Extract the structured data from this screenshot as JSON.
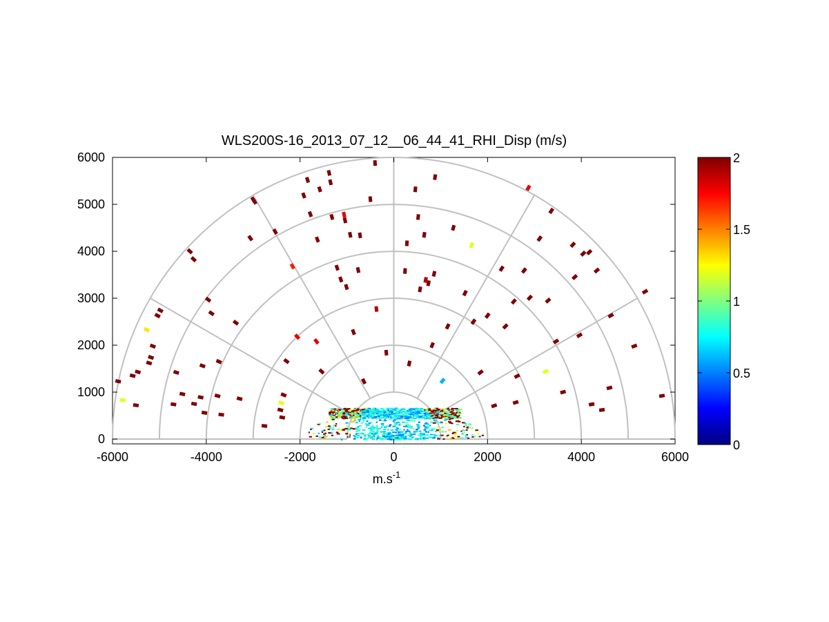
{
  "chart_data": {
    "type": "scatter",
    "subtype": "polar-rhi-sector",
    "title": "WLS200S-16_2013_07_12__06_44_41_RHI_Disp (m/s)",
    "xlabel": "m.s",
    "xlabel_sup": "-1",
    "ylabel": "",
    "xlim": [
      -6000,
      6000
    ],
    "ylim": [
      0,
      6000
    ],
    "xticks": [
      "-6000",
      "-4000",
      "-2000",
      "0",
      "2000",
      "4000",
      "6000"
    ],
    "yticks": [
      "0",
      "1000",
      "2000",
      "3000",
      "4000",
      "5000",
      "6000"
    ],
    "range_rings": [
      1000,
      2000,
      3000,
      4000,
      5000,
      6000
    ],
    "spokes_deg": [
      0,
      30,
      60,
      90,
      120,
      150,
      180
    ],
    "grid": true,
    "colorbar": {
      "colormap": "jet",
      "min": 0,
      "max": 2,
      "ticks": [
        "0",
        "0.5",
        "1",
        "1.5",
        "2"
      ]
    },
    "points": [
      [
        -5880,
        1230,
        2
      ],
      [
        -5780,
        830,
        1.2
      ],
      [
        -5500,
        720,
        2
      ],
      [
        -5570,
        1350,
        2
      ],
      [
        -5460,
        1430,
        2
      ],
      [
        -5270,
        2330,
        1.3
      ],
      [
        -5220,
        1620,
        2
      ],
      [
        -5180,
        1740,
        2
      ],
      [
        -5140,
        1980,
        2
      ],
      [
        -5040,
        2630,
        2
      ],
      [
        -4980,
        2740,
        2
      ],
      [
        -4700,
        740,
        2
      ],
      [
        -4640,
        1420,
        2
      ],
      [
        -4510,
        960,
        2
      ],
      [
        -4350,
        4000,
        2
      ],
      [
        -4270,
        3830,
        2
      ],
      [
        -4260,
        750,
        2
      ],
      [
        -4120,
        890,
        2
      ],
      [
        -4080,
        1560,
        2
      ],
      [
        -4040,
        560,
        2
      ],
      [
        -3960,
        2970,
        2
      ],
      [
        -3890,
        2680,
        2
      ],
      [
        -3760,
        920,
        2
      ],
      [
        -3730,
        1650,
        2
      ],
      [
        -3680,
        520,
        2
      ],
      [
        -3370,
        2480,
        2
      ],
      [
        -3290,
        860,
        2
      ],
      [
        -3060,
        4280,
        2
      ],
      [
        -3000,
        5100,
        2
      ],
      [
        -2970,
        5060,
        2
      ],
      [
        -2760,
        280,
        2
      ],
      [
        -2530,
        4420,
        2
      ],
      [
        -2420,
        620,
        2
      ],
      [
        -2400,
        770,
        1.2
      ],
      [
        -2380,
        460,
        2
      ],
      [
        -2350,
        940,
        2
      ],
      [
        -2290,
        1660,
        2
      ],
      [
        -2160,
        3680,
        1.7
      ],
      [
        -2060,
        2180,
        1.8
      ],
      [
        -1920,
        5190,
        2
      ],
      [
        -1840,
        5520,
        2
      ],
      [
        -1780,
        4790,
        2
      ],
      [
        -1630,
        4250,
        2
      ],
      [
        -1650,
        2080,
        1.8
      ],
      [
        -1580,
        5320,
        2
      ],
      [
        -1540,
        1440,
        2
      ],
      [
        -1380,
        5670,
        2
      ],
      [
        -1350,
        5470,
        2
      ],
      [
        -1320,
        4730,
        2
      ],
      [
        -1210,
        3650,
        2
      ],
      [
        -1130,
        3400,
        2
      ],
      [
        -1060,
        4780,
        1.8
      ],
      [
        -1040,
        4660,
        2
      ],
      [
        -1010,
        3240,
        2
      ],
      [
        -930,
        4350,
        2
      ],
      [
        -860,
        2280,
        2
      ],
      [
        -760,
        3600,
        2
      ],
      [
        -720,
        4340,
        2
      ],
      [
        -640,
        1230,
        2
      ],
      [
        -500,
        5110,
        2
      ],
      [
        -400,
        5880,
        2
      ],
      [
        -370,
        2770,
        1.9
      ],
      [
        -160,
        1840,
        2
      ],
      [
        240,
        3580,
        2
      ],
      [
        280,
        4170,
        2
      ],
      [
        330,
        1610,
        2
      ],
      [
        460,
        5320,
        2
      ],
      [
        520,
        4730,
        2
      ],
      [
        560,
        3190,
        2
      ],
      [
        650,
        4350,
        2
      ],
      [
        680,
        3390,
        1.9
      ],
      [
        740,
        3320,
        2
      ],
      [
        820,
        2000,
        2
      ],
      [
        860,
        3520,
        2
      ],
      [
        880,
        5580,
        2
      ],
      [
        1040,
        1240,
        0.6
      ],
      [
        1150,
        2400,
        2
      ],
      [
        1270,
        4500,
        2
      ],
      [
        1520,
        3110,
        2
      ],
      [
        1660,
        4130,
        1.2
      ],
      [
        1700,
        2500,
        2
      ],
      [
        1850,
        1420,
        2
      ],
      [
        2000,
        2630,
        2
      ],
      [
        2140,
        710,
        2
      ],
      [
        2300,
        3630,
        2
      ],
      [
        2380,
        2400,
        2
      ],
      [
        2560,
        2930,
        2
      ],
      [
        2600,
        780,
        2
      ],
      [
        2630,
        1340,
        2
      ],
      [
        2780,
        3590,
        2
      ],
      [
        2870,
        5350,
        1.8
      ],
      [
        2900,
        3010,
        2
      ],
      [
        3110,
        4270,
        2
      ],
      [
        3240,
        1440,
        1.2
      ],
      [
        3290,
        2950,
        2
      ],
      [
        3360,
        4860,
        2
      ],
      [
        3460,
        2080,
        2
      ],
      [
        3610,
        1000,
        2
      ],
      [
        3820,
        4140,
        2
      ],
      [
        3860,
        3450,
        2
      ],
      [
        3960,
        2210,
        2
      ],
      [
        4040,
        3950,
        2
      ],
      [
        4170,
        3980,
        2
      ],
      [
        4220,
        740,
        2
      ],
      [
        4330,
        3590,
        2
      ],
      [
        4440,
        620,
        2
      ],
      [
        4600,
        1090,
        2
      ],
      [
        4630,
        2630,
        2
      ],
      [
        5130,
        1980,
        2
      ],
      [
        5360,
        3140,
        2
      ],
      [
        5720,
        920,
        2
      ]
    ],
    "near_range_scatter": "dense low-level returns below 800 m between x = -2000 and 1800 m"
  }
}
